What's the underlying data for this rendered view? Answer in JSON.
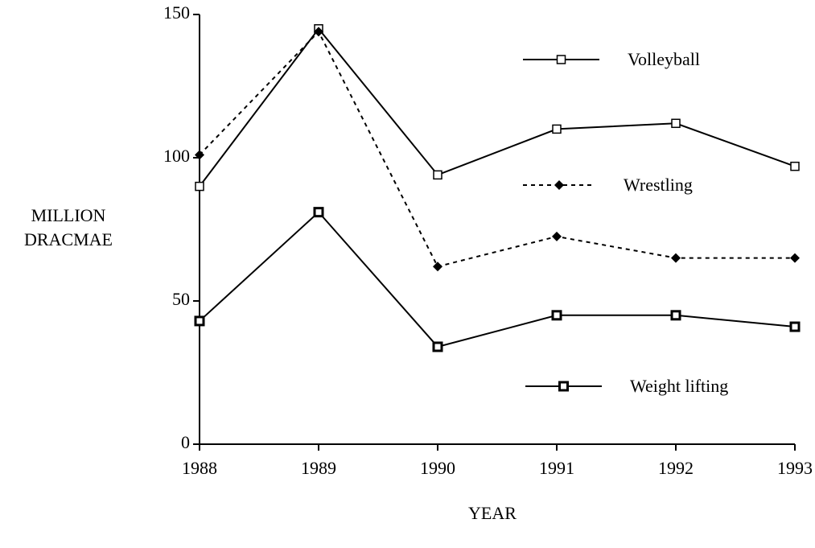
{
  "chart_data": {
    "type": "line",
    "ylabel": [
      "MILLION",
      "DRACMAE"
    ],
    "xlabel": "YEAR",
    "x": [
      1988,
      1989,
      1990,
      1991,
      1992,
      1993
    ],
    "xlim": [
      1988,
      1993
    ],
    "xticks": [
      1988,
      1989,
      1990,
      1991,
      1992,
      1993
    ],
    "ylim": [
      0,
      150
    ],
    "yticks": [
      0,
      50,
      100,
      150
    ],
    "series": [
      {
        "name": "Volleyball",
        "color": "#000000",
        "marker": "square-open",
        "dashed": false,
        "values": [
          90,
          145,
          94,
          110,
          112,
          97
        ]
      },
      {
        "name": "Wrestling",
        "color": "#000000",
        "marker": "diamond",
        "dashed": true,
        "values": [
          101,
          144,
          62,
          72.5,
          65,
          65
        ]
      },
      {
        "name": "Weight lifting",
        "color": "#000000",
        "marker": "square-bold",
        "dashed": false,
        "values": [
          43,
          81,
          34,
          45,
          45,
          41
        ]
      }
    ]
  }
}
